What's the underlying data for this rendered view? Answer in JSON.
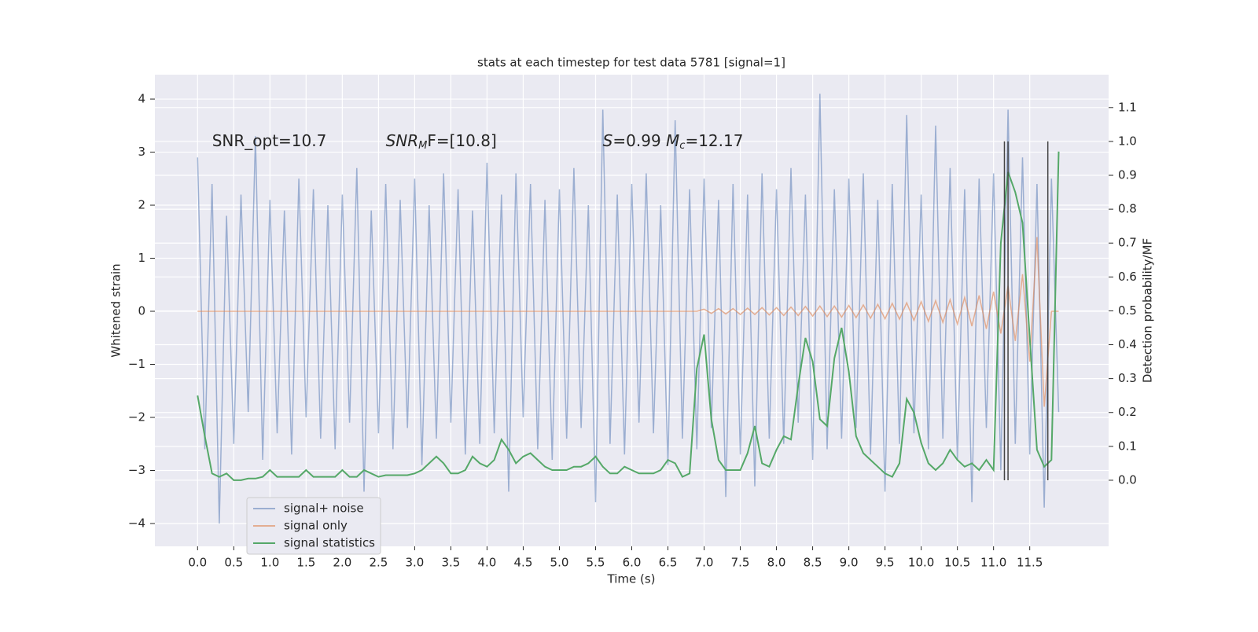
{
  "chart_data": {
    "type": "line",
    "title": "stats at each timestep for test data 5781 [signal=1]",
    "xlabel": "Time (s)",
    "ylabel": "Whitened strain",
    "y2label": "Detection probability/MF",
    "xlim": [
      -0.59,
      12.59
    ],
    "ylim": [
      -4.43,
      4.46
    ],
    "y2lim": [
      -0.195,
      1.197
    ],
    "xticks": [
      {
        "value": 0,
        "label": "0.0"
      },
      0.5,
      {
        "value": 1,
        "label": "1.0"
      },
      1.5,
      {
        "value": 2,
        "label": "2.0"
      },
      2.5,
      {
        "value": 3,
        "label": "3.0"
      },
      3.5,
      {
        "value": 4,
        "label": "4.0"
      },
      4.5,
      {
        "value": 5,
        "label": "5.0"
      },
      5.5,
      {
        "value": 6,
        "label": "6.0"
      },
      6.5,
      {
        "value": 7,
        "label": "7.0"
      },
      7.5,
      {
        "value": 8,
        "label": "8.0"
      },
      8.5,
      {
        "value": 9,
        "label": "9.0"
      },
      9.5,
      {
        "value": 10,
        "label": "10.0"
      },
      10.5,
      {
        "value": 11,
        "label": "11.0"
      },
      11.5
    ],
    "yticks": [
      {
        "value": -4,
        "label": "−4"
      },
      {
        "value": -3,
        "label": "−3"
      },
      {
        "value": -2,
        "label": "−2"
      },
      {
        "value": -1,
        "label": "−1"
      },
      0,
      1,
      2,
      3,
      4
    ],
    "y2ticks": [
      {
        "value": 0,
        "label": "0.0"
      },
      0.1,
      0.2,
      0.3,
      0.4,
      0.5,
      0.6,
      0.7,
      0.8,
      0.9,
      {
        "value": 1,
        "label": "1.0"
      },
      1.1
    ],
    "grid": true,
    "legend": "lower left",
    "background": "#eaeaf2",
    "x": [
      0,
      0.1,
      0.2,
      0.3,
      0.4,
      0.5,
      0.6,
      0.7,
      0.8,
      0.9,
      1,
      1.1,
      1.2,
      1.3,
      1.4,
      1.5,
      1.6,
      1.7,
      1.8,
      1.9,
      2,
      2.1,
      2.2,
      2.3,
      2.4,
      2.5,
      2.6,
      2.7,
      2.8,
      2.9,
      3,
      3.1,
      3.2,
      3.3,
      3.4,
      3.5,
      3.6,
      3.7,
      3.8,
      3.9,
      4,
      4.1,
      4.2,
      4.3,
      4.4,
      4.5,
      4.6,
      4.7,
      4.8,
      4.9,
      5,
      5.1,
      5.2,
      5.3,
      5.4,
      5.5,
      5.6,
      5.7,
      5.8,
      5.9,
      6,
      6.1,
      6.2,
      6.3,
      6.4,
      6.5,
      6.6,
      6.7,
      6.8,
      6.9,
      7,
      7.1,
      7.2,
      7.3,
      7.4,
      7.5,
      7.6,
      7.7,
      7.8,
      7.9,
      8,
      8.1,
      8.2,
      8.3,
      8.4,
      8.5,
      8.6,
      8.7,
      8.8,
      8.9,
      9,
      9.1,
      9.2,
      9.3,
      9.4,
      9.5,
      9.6,
      9.7,
      9.8,
      9.9,
      10,
      10.1,
      10.2,
      10.3,
      10.4,
      10.5,
      10.6,
      10.7,
      10.8,
      10.9,
      11,
      11.1,
      11.2,
      11.3,
      11.4,
      11.5,
      11.6,
      11.7,
      11.8,
      11.9
    ],
    "series": [
      {
        "name": "signal+ noise",
        "color": "#4c72b0",
        "opacity": 0.5,
        "values": [
          2.9,
          -2.6,
          2.4,
          -4.0,
          1.8,
          -2.5,
          2.2,
          -1.9,
          3.3,
          -2.8,
          2.1,
          -2.3,
          1.9,
          -2.7,
          2.5,
          -2.0,
          2.3,
          -2.4,
          2.0,
          -2.6,
          2.2,
          -2.1,
          2.7,
          -3.4,
          1.9,
          -2.3,
          2.4,
          -2.6,
          2.1,
          -2.2,
          2.5,
          -2.9,
          2.0,
          -2.4,
          2.6,
          -2.1,
          2.3,
          -2.7,
          1.9,
          -2.5,
          2.8,
          -2.3,
          2.2,
          -3.4,
          2.6,
          -2.0,
          2.4,
          -2.6,
          2.1,
          -2.8,
          2.3,
          -2.4,
          2.7,
          -2.2,
          2.0,
          -3.6,
          3.8,
          -2.5,
          2.2,
          -2.7,
          2.4,
          -2.1,
          2.6,
          -2.3,
          2.0,
          -2.9,
          3.6,
          -2.4,
          2.3,
          -2.6,
          2.5,
          -2.2,
          2.1,
          -3.5,
          2.4,
          -2.7,
          2.2,
          -3.3,
          2.6,
          -2.4,
          2.3,
          -2.5,
          2.7,
          -2.1,
          2.2,
          -2.8,
          4.1,
          -2.6,
          2.3,
          -2.4,
          2.5,
          -2.2,
          2.6,
          -2.7,
          2.1,
          -3.4,
          2.4,
          -2.5,
          3.7,
          -2.3,
          2.2,
          -2.6,
          3.5,
          -2.4,
          2.7,
          -2.8,
          2.3,
          -3.6,
          2.5,
          -2.2,
          2.6,
          -3.0,
          3.8,
          -2.5,
          2.9,
          -2.7,
          2.4,
          -3.7,
          2.5,
          -1.9
        ]
      },
      {
        "name": "signal only",
        "color": "#dd8452",
        "opacity": 0.6,
        "values": [
          0,
          0,
          0,
          0,
          0,
          0,
          0,
          0,
          0,
          0,
          0,
          0,
          0,
          0,
          0,
          0,
          0,
          0,
          0,
          0,
          0,
          0,
          0,
          0,
          0,
          0,
          0,
          0,
          0,
          0,
          0,
          0,
          0,
          0,
          0,
          0,
          0,
          0,
          0,
          0,
          0,
          0,
          0,
          0,
          0,
          0,
          0,
          0,
          0,
          0,
          0,
          0,
          0,
          0,
          0,
          0,
          0,
          0,
          0,
          0,
          0,
          0,
          0,
          0,
          0,
          0,
          0,
          0,
          0,
          0,
          0.04,
          -0.04,
          0.05,
          -0.05,
          0.05,
          -0.06,
          0.06,
          -0.06,
          0.07,
          -0.07,
          0.07,
          -0.08,
          0.08,
          -0.08,
          0.09,
          -0.09,
          0.1,
          -0.1,
          0.1,
          -0.11,
          0.11,
          -0.12,
          0.12,
          -0.13,
          0.13,
          -0.14,
          0.15,
          -0.15,
          0.16,
          -0.17,
          0.18,
          -0.19,
          0.2,
          -0.21,
          0.22,
          -0.24,
          0.26,
          -0.28,
          0.3,
          -0.33,
          0.37,
          -0.42,
          0.48,
          -0.56,
          0.7,
          -0.95,
          1.4,
          -1.8,
          0,
          0
        ]
      },
      {
        "name": "signal statistics",
        "color": "#55a868",
        "opacity": 1,
        "axis": "y2",
        "values": [
          0.25,
          0.13,
          0.02,
          0.01,
          0.02,
          0,
          0,
          0.005,
          0.005,
          0.01,
          0.03,
          0.01,
          0.01,
          0.01,
          0.01,
          0.03,
          0.01,
          0.01,
          0.01,
          0.01,
          0.03,
          0.01,
          0.01,
          0.03,
          0.02,
          0.01,
          0.015,
          0.015,
          0.015,
          0.015,
          0.02,
          0.03,
          0.05,
          0.07,
          0.05,
          0.02,
          0.02,
          0.03,
          0.07,
          0.05,
          0.04,
          0.06,
          0.12,
          0.09,
          0.05,
          0.07,
          0.08,
          0.06,
          0.04,
          0.03,
          0.03,
          0.03,
          0.04,
          0.04,
          0.05,
          0.07,
          0.04,
          0.02,
          0.02,
          0.04,
          0.03,
          0.02,
          0.02,
          0.02,
          0.03,
          0.06,
          0.05,
          0.01,
          0.02,
          0.33,
          0.43,
          0.18,
          0.06,
          0.03,
          0.03,
          0.03,
          0.08,
          0.16,
          0.05,
          0.04,
          0.09,
          0.13,
          0.12,
          0.28,
          0.42,
          0.35,
          0.18,
          0.16,
          0.36,
          0.45,
          0.32,
          0.13,
          0.08,
          0.06,
          0.04,
          0.02,
          0.01,
          0.05,
          0.24,
          0.2,
          0.11,
          0.05,
          0.03,
          0.05,
          0.09,
          0.06,
          0.04,
          0.05,
          0.03,
          0.06,
          0.03,
          0.7,
          0.91,
          0.85,
          0.76,
          0.42,
          0.09,
          0.04,
          0.06,
          0.97
        ]
      }
    ],
    "vlines": [
      11.15,
      11.2,
      11.75
    ],
    "vline_range": [
      0,
      1
    ],
    "vline_color": "#444444",
    "annotations": [
      {
        "x": 0.2,
        "y": 1.0,
        "parts": [
          {
            "text": "SNR_opt=10.7",
            "style": "normal"
          }
        ]
      },
      {
        "x": 2.6,
        "y": 1.0,
        "parts": [
          {
            "text": "SNR",
            "style": "italic"
          },
          {
            "text": "M",
            "style": "sub"
          },
          {
            "text": "F=[10.8]",
            "style": "italic-lead"
          }
        ]
      },
      {
        "x": 5.6,
        "y": 1.0,
        "parts": [
          {
            "text": "S",
            "style": "italic"
          },
          {
            "text": "=0.99   ",
            "style": "normal"
          },
          {
            "text": "M",
            "style": "italic"
          },
          {
            "text": "c",
            "style": "sub"
          },
          {
            "text": "=12.17",
            "style": "normal"
          }
        ]
      }
    ]
  }
}
